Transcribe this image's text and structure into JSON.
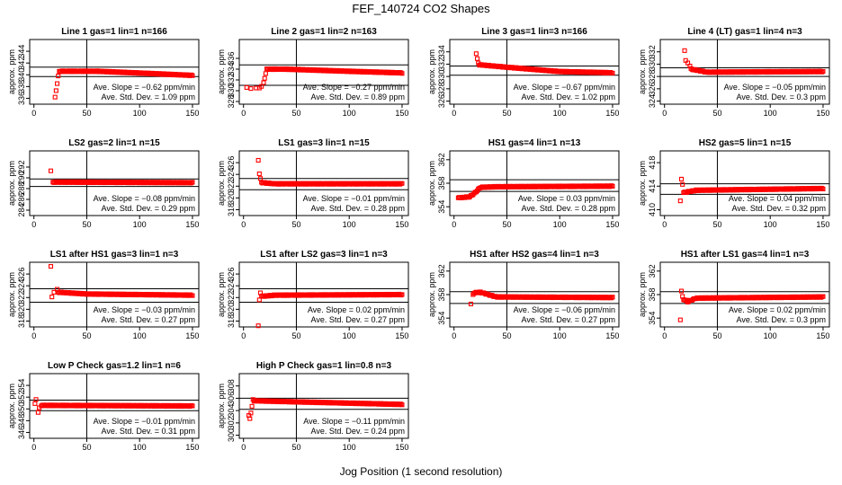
{
  "title": "FEF_140724  CO2 Shapes",
  "xlabel": "Jog Position (1 second resolution)",
  "ylabel": "approx. ppm",
  "marker_color": "#ff0000",
  "chart_data": [
    {
      "type": "scatter",
      "title": "Line 1 gas=1 lin=1 n=166",
      "xticks": [
        0,
        50,
        100,
        150
      ],
      "ylim": [
        335,
        346
      ],
      "yticks": [
        336,
        338,
        340,
        342,
        344
      ],
      "hlines": [
        339.7,
        341.3
      ],
      "vline": 50,
      "slope": "Ave. Slope = −0.62 ppm/min",
      "sd": "Ave. Std. Dev. = 1.09 ppm",
      "outliers": [
        [
          20,
          336.2
        ],
        [
          21,
          337.3
        ],
        [
          22,
          338.5
        ],
        [
          23,
          339.8
        ]
      ],
      "curve": {
        "x0": 24,
        "x1": 150,
        "pts": [
          [
            24,
            340.6
          ],
          [
            60,
            340.6
          ],
          [
            100,
            340.3
          ],
          [
            150,
            339.9
          ]
        ]
      }
    },
    {
      "type": "scatter",
      "title": "Line 2 gas=1 lin=2 n=163",
      "xticks": [
        0,
        50,
        100,
        150
      ],
      "ylim": [
        327.5,
        339.5
      ],
      "yticks": [
        328,
        330,
        332,
        334,
        336
      ],
      "hlines": [
        331,
        334.8
      ],
      "vline": 50,
      "slope": "Ave. Slope = −0.27 ppm/min",
      "sd": "Ave. Std. Dev. = 0.89 ppm",
      "outliers": [
        [
          3,
          330.6
        ],
        [
          7,
          330.4
        ],
        [
          12,
          330.5
        ],
        [
          15,
          330.5
        ],
        [
          17,
          330.8
        ],
        [
          19,
          331.5
        ],
        [
          20,
          332.3
        ],
        [
          21,
          333.2
        ]
      ],
      "curve": {
        "x0": 22,
        "x1": 150,
        "pts": [
          [
            22,
            334
          ],
          [
            40,
            334
          ],
          [
            100,
            333.6
          ],
          [
            150,
            333.3
          ]
        ]
      }
    },
    {
      "type": "scatter",
      "title": "Line 3 gas=1 lin=3 n=166",
      "xticks": [
        0,
        50,
        100,
        150
      ],
      "ylim": [
        325.5,
        336
      ],
      "yticks": [
        326,
        328,
        330,
        332,
        334
      ],
      "hlines": [
        330.2,
        331.7
      ],
      "vline": 50,
      "slope": "Ave. Slope = −0.67 ppm/min",
      "sd": "Ave. Std. Dev. = 1.02 ppm",
      "outliers": [
        [
          21,
          333.7
        ],
        [
          22,
          332.9
        ],
        [
          23,
          332.2
        ]
      ],
      "curve": {
        "x0": 24,
        "x1": 150,
        "pts": [
          [
            24,
            331.9
          ],
          [
            50,
            331.5
          ],
          [
            100,
            330.8
          ],
          [
            150,
            330.6
          ]
        ]
      }
    },
    {
      "type": "scatter",
      "title": "Line 4 (LT) gas=1 lin=4 n=3",
      "xticks": [
        0,
        50,
        100,
        150
      ],
      "ylim": [
        323.5,
        334
      ],
      "yticks": [
        324,
        326,
        328,
        330,
        332
      ],
      "hlines": [
        328,
        329.4
      ],
      "vline": 50,
      "slope": "Ave. Slope = −0.05 ppm/min",
      "sd": "Ave. Std. Dev. = 0.3 ppm",
      "outliers": [
        [
          19,
          332.2
        ],
        [
          20,
          330.6
        ],
        [
          22,
          330.2
        ],
        [
          24,
          329.7
        ]
      ],
      "curve": {
        "x0": 25,
        "x1": 150,
        "pts": [
          [
            25,
            329.2
          ],
          [
            40,
            328.7
          ],
          [
            150,
            328.8
          ]
        ]
      }
    },
    {
      "type": "scatter",
      "title": "LS2 gas=2 lin=1 n=15",
      "xticks": [
        0,
        50,
        100,
        150
      ],
      "ylim": [
        283,
        295
      ],
      "yticks": [
        284,
        286,
        288,
        290,
        292
      ],
      "hlines": [
        288.4,
        289.8
      ],
      "vline": 50,
      "slope": "Ave. Slope = −0.08 ppm/min",
      "sd": "Ave. Std. Dev. = 0.29 ppm",
      "outliers": [
        [
          16,
          291.3
        ],
        [
          18,
          289.2
        ]
      ],
      "curve": {
        "x0": 19,
        "x1": 150,
        "pts": [
          [
            19,
            289.2
          ],
          [
            30,
            289.2
          ],
          [
            150,
            289.1
          ]
        ]
      }
    },
    {
      "type": "scatter",
      "title": "LS1 gas=3 lin=1 n=15",
      "xticks": [
        0,
        50,
        100,
        150
      ],
      "ylim": [
        317,
        328
      ],
      "yticks": [
        318,
        320,
        322,
        324,
        326
      ],
      "hlines": [
        321.4,
        323.3
      ],
      "vline": 50,
      "slope": "Ave. Slope = −0.01 ppm/min",
      "sd": "Ave. Std. Dev. = 0.28 ppm",
      "outliers": [
        [
          14,
          326.4
        ],
        [
          15,
          324.1
        ],
        [
          16,
          323.3
        ]
      ],
      "curve": {
        "x0": 17,
        "x1": 150,
        "pts": [
          [
            17,
            322.6
          ],
          [
            30,
            322.4
          ],
          [
            150,
            322.4
          ]
        ]
      }
    },
    {
      "type": "scatter",
      "title": "HS1 gas=4 lin=1 n=13",
      "xticks": [
        0,
        50,
        100,
        150
      ],
      "ylim": [
        352.5,
        363.5
      ],
      "yticks": [
        354,
        358,
        362
      ],
      "hlines": [
        356.6,
        358.6
      ],
      "vline": 50,
      "slope": "Ave. Slope = 0.03 ppm/min",
      "sd": "Ave. Std. Dev. = 0.28 ppm",
      "outliers": [],
      "curve": {
        "x0": 4,
        "x1": 150,
        "pts": [
          [
            4,
            355.5
          ],
          [
            15,
            355.7
          ],
          [
            20,
            356.4
          ],
          [
            25,
            357.3
          ],
          [
            40,
            357.4
          ],
          [
            150,
            357.5
          ]
        ]
      }
    },
    {
      "type": "scatter",
      "title": "HS2 gas=5 lin=1 n=15",
      "xticks": [
        0,
        50,
        100,
        150
      ],
      "ylim": [
        409,
        420
      ],
      "yticks": [
        410,
        414,
        418
      ],
      "hlines": [
        412.6,
        414.4
      ],
      "vline": 50,
      "slope": "Ave. Slope = 0.04 ppm/min",
      "sd": "Ave. Std. Dev. = 0.32 ppm",
      "outliers": [
        [
          15,
          411.5
        ],
        [
          16,
          415.2
        ],
        [
          17,
          414.3
        ]
      ],
      "curve": {
        "x0": 18,
        "x1": 150,
        "pts": [
          [
            18,
            412.9
          ],
          [
            30,
            413.3
          ],
          [
            150,
            413.6
          ]
        ]
      }
    },
    {
      "type": "scatter",
      "title": "LS1 after HS1 gas=3 lin=1 n=3",
      "xticks": [
        0,
        50,
        100,
        150
      ],
      "ylim": [
        317,
        328
      ],
      "yticks": [
        318,
        320,
        322,
        324,
        326
      ],
      "hlines": [
        321.2,
        323.5
      ],
      "vline": 50,
      "slope": "Ave. Slope = −0.03 ppm/min",
      "sd": "Ave. Std. Dev. = 0.27 ppm",
      "outliers": [
        [
          16,
          327.3
        ],
        [
          17,
          322.1
        ],
        [
          19,
          322.9
        ],
        [
          22,
          323.4
        ]
      ],
      "curve": {
        "x0": 23,
        "x1": 150,
        "pts": [
          [
            23,
            322.9
          ],
          [
            50,
            322.6
          ],
          [
            150,
            322.4
          ]
        ]
      }
    },
    {
      "type": "scatter",
      "title": "LS1 after LS2 gas=3 lin=1 n=3",
      "xticks": [
        0,
        50,
        100,
        150
      ],
      "ylim": [
        317,
        328
      ],
      "yticks": [
        318,
        320,
        322,
        324,
        326
      ],
      "hlines": [
        321.2,
        323.5
      ],
      "vline": 50,
      "slope": "Ave. Slope = 0.02 ppm/min",
      "sd": "Ave. Std. Dev. = 0.27 ppm",
      "outliers": [
        [
          14,
          317.2
        ],
        [
          15,
          321.6
        ],
        [
          16,
          322.8
        ]
      ],
      "curve": {
        "x0": 17,
        "x1": 150,
        "pts": [
          [
            17,
            322.2
          ],
          [
            30,
            322.4
          ],
          [
            150,
            322.5
          ]
        ]
      }
    },
    {
      "type": "scatter",
      "title": "HS1 after HS2 gas=4 lin=1 n=3",
      "xticks": [
        0,
        50,
        100,
        150
      ],
      "ylim": [
        352.5,
        363.5
      ],
      "yticks": [
        354,
        358,
        362
      ],
      "hlines": [
        356.5,
        358.5
      ],
      "vline": 50,
      "slope": "Ave. Slope = −0.06 ppm/min",
      "sd": "Ave. Std. Dev. = 0.27 ppm",
      "outliers": [
        [
          16,
          356.4
        ],
        [
          18,
          358
        ]
      ],
      "curve": {
        "x0": 19,
        "x1": 150,
        "pts": [
          [
            19,
            358.3
          ],
          [
            25,
            358.4
          ],
          [
            40,
            357.6
          ],
          [
            150,
            357.5
          ]
        ]
      }
    },
    {
      "type": "scatter",
      "title": "HS1 after LS1 gas=4 lin=1 n=3",
      "xticks": [
        0,
        50,
        100,
        150
      ],
      "ylim": [
        352.5,
        363.5
      ],
      "yticks": [
        354,
        358,
        362
      ],
      "hlines": [
        356.5,
        358.5
      ],
      "vline": 50,
      "slope": "Ave. Slope = 0.02 ppm/min",
      "sd": "Ave. Std. Dev. = 0.3 ppm",
      "outliers": [
        [
          15,
          353.7
        ],
        [
          16,
          358.6
        ],
        [
          17,
          357.7
        ]
      ],
      "curve": {
        "x0": 18,
        "x1": 150,
        "pts": [
          [
            18,
            357.2
          ],
          [
            22,
            356.8
          ],
          [
            30,
            357.4
          ],
          [
            150,
            357.6
          ]
        ]
      }
    },
    {
      "type": "scatter",
      "title": "Low P Check gas=1.2 lin=1 n=6",
      "xticks": [
        0,
        50,
        100,
        150
      ],
      "ylim": [
        345,
        356
      ],
      "yticks": [
        346,
        348,
        350,
        352,
        354
      ],
      "hlines": [
        349.7,
        351.5
      ],
      "vline": 50,
      "slope": "Ave. Slope = −0.01 ppm/min",
      "sd": "Ave. Std. Dev. = 0.31 ppm",
      "outliers": [
        [
          1,
          350.9
        ],
        [
          2,
          351.6
        ],
        [
          4,
          349.4
        ],
        [
          5,
          350.2
        ]
      ],
      "curve": {
        "x0": 7,
        "x1": 150,
        "pts": [
          [
            7,
            350.6
          ],
          [
            150,
            350.5
          ]
        ]
      }
    },
    {
      "type": "scatter",
      "title": "High P Check gas=1 lin=0.8 n=3",
      "xticks": [
        0,
        50,
        100,
        150
      ],
      "ylim": [
        299.5,
        310
      ],
      "yticks": [
        300,
        302,
        304,
        306,
        308
      ],
      "hlines": [
        304.2,
        306
      ],
      "vline": 50,
      "slope": "Ave. Slope = −0.11 ppm/min",
      "sd": "Ave. Std. Dev. = 0.24 ppm",
      "outliers": [
        [
          5,
          303.2
        ],
        [
          6,
          302.7
        ],
        [
          7,
          303.6
        ],
        [
          8,
          304.7
        ],
        [
          9,
          305.8
        ]
      ],
      "curve": {
        "x0": 10,
        "x1": 150,
        "pts": [
          [
            10,
            305.6
          ],
          [
            30,
            305.5
          ],
          [
            150,
            305
          ]
        ]
      }
    }
  ]
}
